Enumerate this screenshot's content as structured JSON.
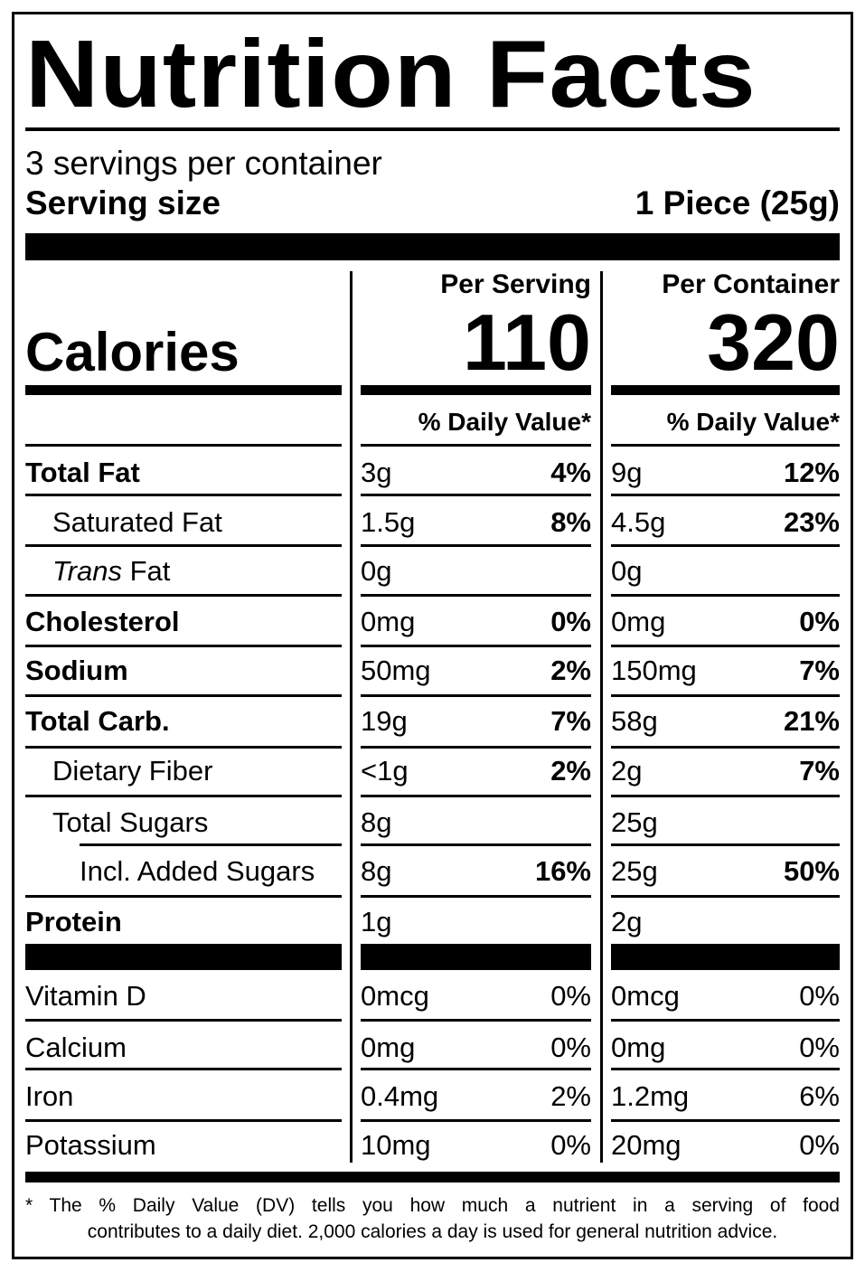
{
  "label": {
    "title": "Nutrition Facts",
    "servings_per_container": "3 servings per container",
    "serving_size_label": "Serving size",
    "serving_size_value": "1 Piece (25g)",
    "columns": [
      {
        "header": "Per Serving",
        "calories": "110",
        "dv_header": "% Daily Value*"
      },
      {
        "header": "Per Container",
        "calories": "320",
        "dv_header": "% Daily Value*"
      }
    ],
    "calories_label": "Calories",
    "nutrients": [
      {
        "name": "Total Fat",
        "bold": true,
        "indent": 0,
        "serving_amount": "3g",
        "serving_dv": "4%",
        "container_amount": "9g",
        "container_dv": "12%"
      },
      {
        "name": "Saturated Fat",
        "bold": false,
        "indent": 1,
        "serving_amount": "1.5g",
        "serving_dv": "8%",
        "container_amount": "4.5g",
        "container_dv": "23%"
      },
      {
        "name_italic": "Trans",
        "name": " Fat",
        "bold": false,
        "indent": 1,
        "serving_amount": "0g",
        "serving_dv": "",
        "container_amount": "0g",
        "container_dv": ""
      },
      {
        "name": "Cholesterol",
        "bold": true,
        "indent": 0,
        "serving_amount": "0mg",
        "serving_dv": "0%",
        "container_amount": "0mg",
        "container_dv": "0%"
      },
      {
        "name": "Sodium",
        "bold": true,
        "indent": 0,
        "serving_amount": "50mg",
        "serving_dv": "2%",
        "container_amount": "150mg",
        "container_dv": "7%"
      },
      {
        "name": "Total Carb.",
        "bold": true,
        "indent": 0,
        "serving_amount": "19g",
        "serving_dv": "7%",
        "container_amount": "58g",
        "container_dv": "21%"
      },
      {
        "name": "Dietary Fiber",
        "bold": false,
        "indent": 1,
        "serving_amount": "<1g",
        "serving_dv": "2%",
        "container_amount": "2g",
        "container_dv": "7%"
      },
      {
        "name": "Total Sugars",
        "bold": false,
        "indent": 1,
        "serving_amount": "8g",
        "serving_dv": "",
        "container_amount": "25g",
        "container_dv": ""
      },
      {
        "name": "Incl. Added Sugars",
        "bold": false,
        "indent": 2,
        "serving_amount": "8g",
        "serving_dv": "16%",
        "container_amount": "25g",
        "container_dv": "50%"
      },
      {
        "name": "Protein",
        "bold": true,
        "indent": 0,
        "serving_amount": "1g",
        "serving_dv": "",
        "container_amount": "2g",
        "container_dv": ""
      }
    ],
    "vitamins": [
      {
        "name": "Vitamin D",
        "serving_amount": "0mcg",
        "serving_dv": "0%",
        "container_amount": "0mcg",
        "container_dv": "0%"
      },
      {
        "name": "Calcium",
        "serving_amount": "0mg",
        "serving_dv": "0%",
        "container_amount": "0mg",
        "container_dv": "0%"
      },
      {
        "name": "Iron",
        "serving_amount": "0.4mg",
        "serving_dv": "2%",
        "container_amount": "1.2mg",
        "container_dv": "6%"
      },
      {
        "name": "Potassium",
        "serving_amount": "10mg",
        "serving_dv": "0%",
        "container_amount": "20mg",
        "container_dv": "0%"
      }
    ],
    "footnote_line1": "* The % Daily Value (DV) tells you how much a nutrient in a serving of food",
    "footnote_line2": "contributes to a daily diet. 2,000 calories a day is used for general nutrition advice."
  }
}
